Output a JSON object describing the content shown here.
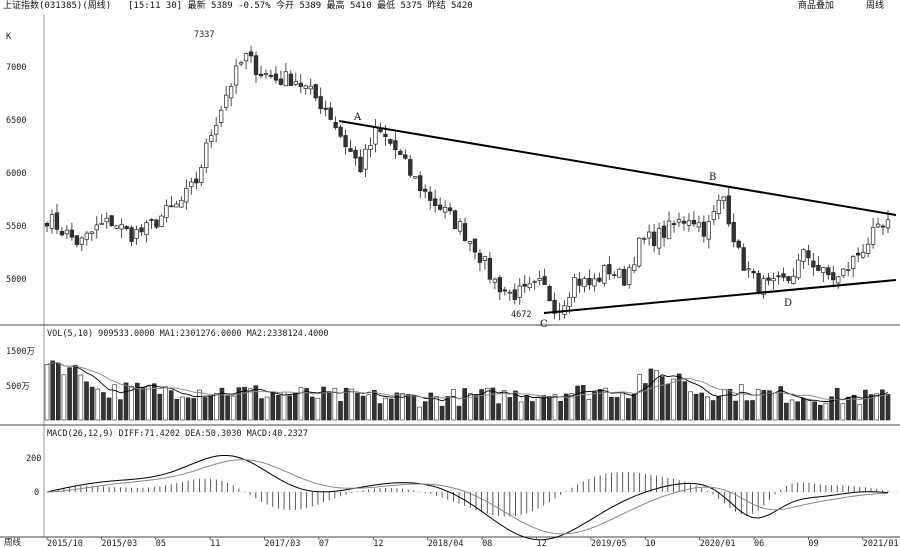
{
  "header": {
    "title": "上证指数(031385)(周线)",
    "quote": "[15:11 30] 最新 5389 -0.57% 今开 5389 最高 5410 最低 5375 昨结 5420",
    "overlay_button": "商品叠加",
    "period_button": "周线"
  },
  "colors": {
    "up": "#ffffff",
    "down": "#333333",
    "outline": "#222222",
    "trend": "#000000",
    "ma1": "#000000",
    "ma2": "#8c8c8c"
  },
  "main_panel": {
    "unit_label": "K",
    "y_ticks": [
      "7000",
      "6500",
      "6000",
      "5500",
      "5000"
    ],
    "max_label": "7337",
    "min_label": "4672",
    "points": [
      "A",
      "B",
      "C",
      "D"
    ]
  },
  "volume_panel": {
    "legend": "VOL(5,10) 909533.0000 MA1:2301276.0000 MA2:2338124.4000",
    "y_ticks": [
      "1500万",
      "500万"
    ]
  },
  "macd_panel": {
    "legend": "MACD(26,12,9) DIFF:71.4202 DEA:50.3030 MACD:40.2327",
    "y_ticks": [
      "200",
      "0"
    ]
  },
  "x_axis": {
    "corner_label": "周线",
    "labels": [
      "2015/10",
      "2015/03",
      "05",
      "11",
      "2017/03",
      "07",
      "12",
      "2018/04",
      "08",
      "12",
      "2019/05",
      "10",
      "2020/01",
      "06",
      "09",
      "2021/01"
    ]
  },
  "chart_data": {
    "type": "candlestick",
    "title": "上证指数(031385)(周线)",
    "ylim": [
      4600,
      7300
    ],
    "max_point": 7337,
    "min_point": 4672,
    "trendlines": [
      {
        "from": "A",
        "to": "upper-right",
        "values": [
          6490,
          5600
        ]
      },
      {
        "from": "C",
        "to": "lower-right",
        "values": [
          4660,
          4990
        ]
      }
    ],
    "close_path": [
      5580,
      5450,
      5330,
      5480,
      5550,
      5420,
      5460,
      5600,
      5700,
      5900,
      6400,
      6800,
      7100,
      6950,
      6880,
      6900,
      6750,
      6600,
      6300,
      6050,
      6400,
      6250,
      6000,
      5800,
      5650,
      5500,
      5300,
      5000,
      4860,
      4870,
      4950,
      4700,
      5000,
      4940,
      5100,
      5000,
      5350,
      5400,
      5500,
      5600,
      5450,
      5800,
      5200,
      4960,
      4920,
      5000,
      5250,
      5050,
      5000,
      5200,
      5400,
      5500
    ],
    "volume_range": [
      0,
      1700
    ],
    "volume_unit": "万",
    "macd_range": [
      -300,
      300
    ]
  }
}
